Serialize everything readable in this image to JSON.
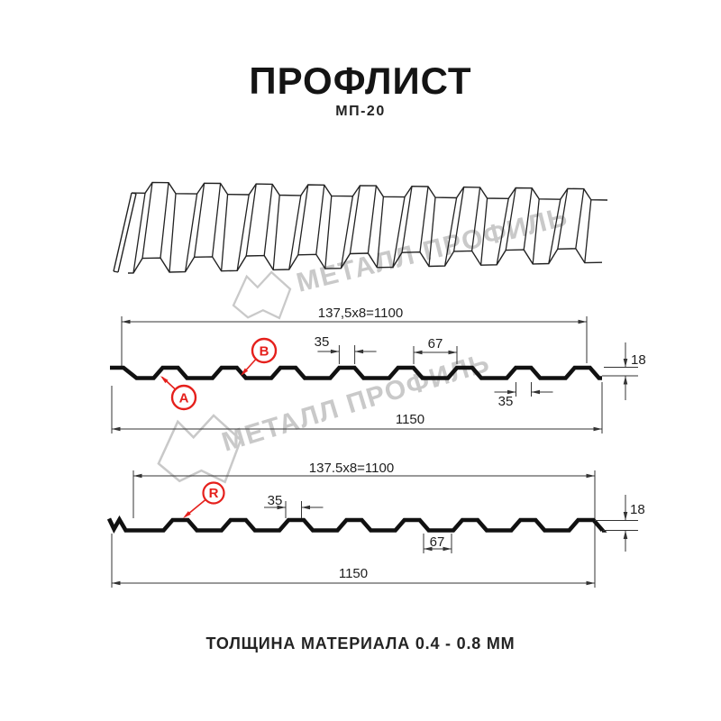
{
  "header": {
    "title": "ПРОФЛИСТ",
    "model": "МП-20"
  },
  "footer": {
    "text": "ТОЛЩИНА МАТЕРИАЛА 0.4 - 0.8 ММ"
  },
  "watermark": {
    "brand": "МЕТАЛЛ ПРОФИЛЬ"
  },
  "colors": {
    "line": "#111111",
    "dim": "#333333",
    "red": "#e5201c",
    "watermark": "#c9c9c9"
  },
  "diagram_top": {
    "module_dim": "137,5x8=1100",
    "rib_top_width": "35",
    "valley_width": "67",
    "profile_height": "18",
    "rib_bottom_width": "35",
    "total_width": "1150",
    "label_a": "A",
    "label_b": "B"
  },
  "diagram_bottom": {
    "module_dim": "137.5x8=1100",
    "rib_top_width": "35",
    "valley_width": "67",
    "profile_height": "18",
    "total_width": "1150",
    "label_r": "R"
  }
}
